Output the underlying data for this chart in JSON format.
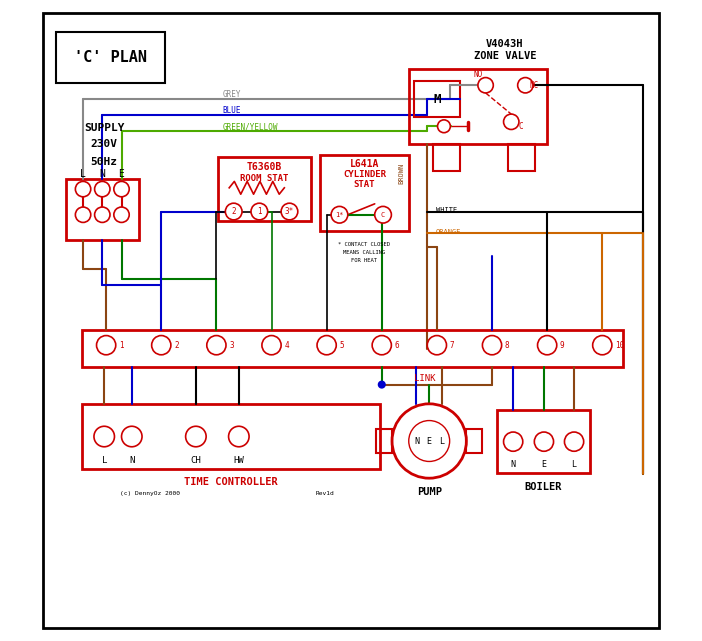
{
  "title": "'C' PLAN",
  "bg_color": "#ffffff",
  "border_color": "#000000",
  "red": "#cc0000",
  "blue": "#0000cc",
  "green": "#007700",
  "brown": "#8B4513",
  "grey": "#888888",
  "orange": "#cc6600",
  "black": "#000000",
  "green_yellow": "#4daa00",
  "time_ctrl_text": "TIME CONTROLLER",
  "pump_text": "PUMP",
  "boiler_text": "BOILER",
  "terminal_labels": [
    "1",
    "2",
    "3",
    "4",
    "5",
    "6",
    "7",
    "8",
    "9",
    "10"
  ],
  "link_text": "LINK",
  "copyright": "(c) DennyOz 2000",
  "rev": "Rev1d"
}
